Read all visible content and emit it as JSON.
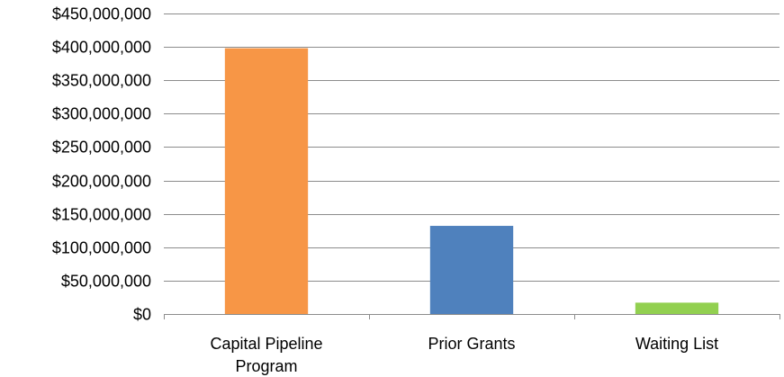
{
  "chart_data": {
    "type": "bar",
    "title": "",
    "xlabel": "",
    "ylabel": "",
    "categories": [
      "Capital Pipeline Program",
      "Prior Grants",
      "Waiting List"
    ],
    "category_lines": [
      [
        "Capital Pipeline",
        "Program"
      ],
      [
        "Prior Grants"
      ],
      [
        "Waiting List"
      ]
    ],
    "values": [
      398000000,
      132000000,
      17000000
    ],
    "colors": [
      "#F79646",
      "#4F81BD",
      "#92D050"
    ],
    "ylim": [
      0,
      450000000
    ],
    "yticks": [
      0,
      50000000,
      100000000,
      150000000,
      200000000,
      250000000,
      300000000,
      350000000,
      400000000,
      450000000
    ],
    "ytick_labels": [
      "$0",
      "$50,000,000",
      "$100,000,000",
      "$150,000,000",
      "$200,000,000",
      "$250,000,000",
      "$300,000,000",
      "$350,000,000",
      "$400,000,000",
      "$450,000,000"
    ],
    "grid": true,
    "legend": "none"
  }
}
